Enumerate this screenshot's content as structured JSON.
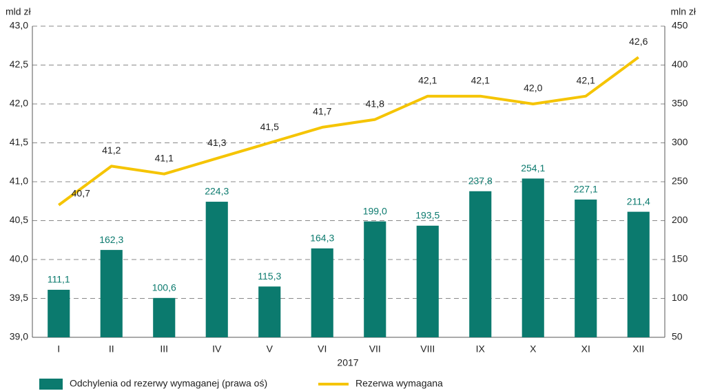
{
  "chart_data": {
    "type": "combo",
    "y_label": "mld zł",
    "y2_label": "mln zł",
    "x_label": "2017",
    "categories": [
      "I",
      "II",
      "III",
      "IV",
      "V",
      "VI",
      "VII",
      "VIII",
      "IX",
      "X",
      "XI",
      "XII"
    ],
    "ylim": [
      39.0,
      43.0
    ],
    "yticks": [
      {
        "value": 39.0,
        "label": "39,0"
      },
      {
        "value": 39.5,
        "label": "39,5"
      },
      {
        "value": 40.0,
        "label": "40,0"
      },
      {
        "value": 40.5,
        "label": "40,5"
      },
      {
        "value": 41.0,
        "label": "41,0"
      },
      {
        "value": 41.5,
        "label": "41,5"
      },
      {
        "value": 42.0,
        "label": "42,0"
      },
      {
        "value": 42.5,
        "label": "42,5"
      },
      {
        "value": 43.0,
        "label": "43,0"
      }
    ],
    "y2lim": [
      50,
      450
    ],
    "y2ticks": [
      50,
      100,
      150,
      200,
      250,
      300,
      350,
      400,
      450
    ],
    "grid": true,
    "legend": "bottom",
    "series": [
      {
        "name": "Odchylenia od rezerwy wymaganej (prawa oś)",
        "type": "bar",
        "axis": "y2",
        "color": "#0b7a6e",
        "values": [
          111.1,
          162.3,
          100.6,
          224.3,
          115.3,
          164.3,
          199.0,
          193.5,
          237.8,
          254.1,
          227.1,
          211.4
        ],
        "value_labels": [
          "111,1",
          "162,3",
          "100,6",
          "224,3",
          "115,3",
          "164,3",
          "199,0",
          "193,5",
          "237,8",
          "254,1",
          "227,1",
          "211,4"
        ]
      },
      {
        "name": "Rezerwa wymagana",
        "type": "line",
        "axis": "y",
        "color": "#f5c400",
        "values": [
          40.7,
          41.2,
          41.1,
          41.3,
          41.5,
          41.7,
          41.8,
          42.1,
          42.1,
          42.0,
          42.1,
          42.6
        ],
        "value_labels": [
          "40,7",
          "41,2",
          "41,1",
          "41,3",
          "41,5",
          "41,7",
          "41,8",
          "42,1",
          "42,1",
          "42,0",
          "42,1",
          "42,6"
        ]
      }
    ]
  }
}
